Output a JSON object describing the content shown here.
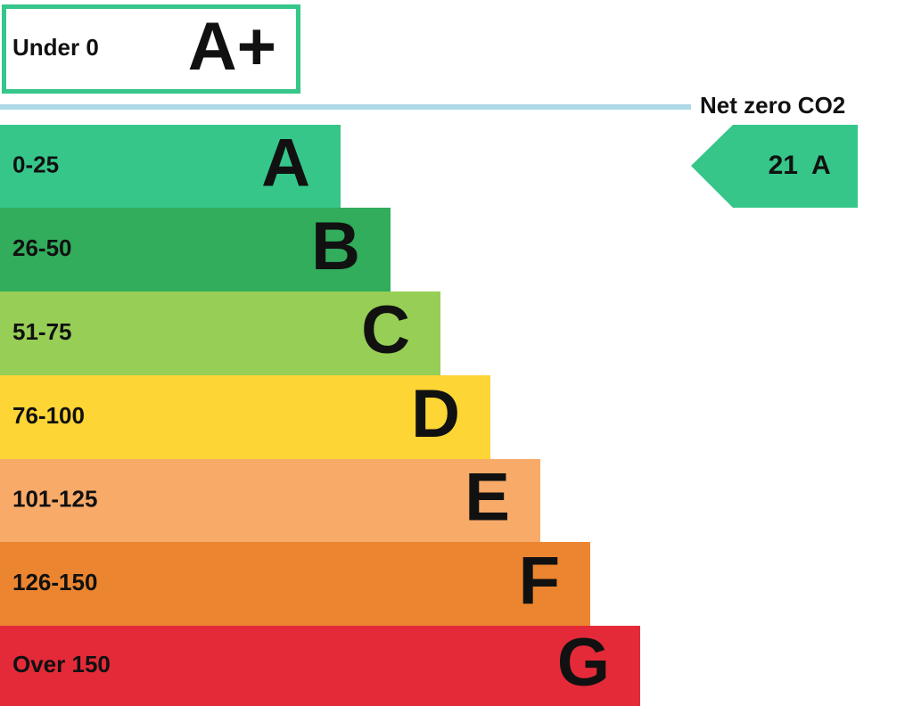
{
  "top_band": {
    "range": "Under 0",
    "rating": "A+"
  },
  "net_zero_label": "Net zero CO2",
  "bands": [
    {
      "range": "0-25",
      "rating": "A"
    },
    {
      "range": "26-50",
      "rating": "B"
    },
    {
      "range": "51-75",
      "rating": "C"
    },
    {
      "range": "76-100",
      "rating": "D"
    },
    {
      "range": "101-125",
      "rating": "E"
    },
    {
      "range": "126-150",
      "rating": "F"
    },
    {
      "range": "Over 150",
      "rating": "G"
    }
  ],
  "current": {
    "score": 21,
    "rating": "A"
  }
}
